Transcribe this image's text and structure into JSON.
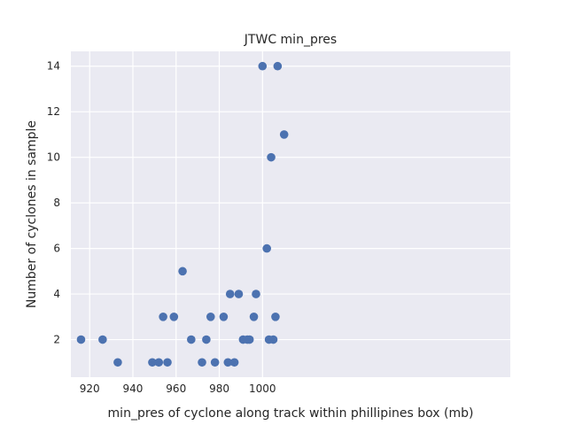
{
  "chart_data": {
    "type": "scatter",
    "title": "JTWC min_pres",
    "xlabel": "min_pres of cyclone along track within phillipines box (mb)",
    "ylabel": "Number of cyclones in sample",
    "xlim": [
      911.3,
      1114.7
    ],
    "ylim": [
      0.35,
      14.65
    ],
    "xticks": [
      920,
      940,
      960,
      980,
      1000
    ],
    "yticks": [
      2,
      4,
      6,
      8,
      10,
      12,
      14
    ],
    "grid": true,
    "point_color": "#4c72b0",
    "background_color": "#eaeaf2",
    "points": [
      {
        "x": 916,
        "y": 2
      },
      {
        "x": 926,
        "y": 2
      },
      {
        "x": 933,
        "y": 1
      },
      {
        "x": 949,
        "y": 1
      },
      {
        "x": 952,
        "y": 1
      },
      {
        "x": 954,
        "y": 3
      },
      {
        "x": 956,
        "y": 1
      },
      {
        "x": 959,
        "y": 3
      },
      {
        "x": 963,
        "y": 5
      },
      {
        "x": 967,
        "y": 2
      },
      {
        "x": 972,
        "y": 1
      },
      {
        "x": 974,
        "y": 2
      },
      {
        "x": 976,
        "y": 3
      },
      {
        "x": 978,
        "y": 1
      },
      {
        "x": 982,
        "y": 3
      },
      {
        "x": 984,
        "y": 1
      },
      {
        "x": 985,
        "y": 4
      },
      {
        "x": 987,
        "y": 1
      },
      {
        "x": 989,
        "y": 4
      },
      {
        "x": 991,
        "y": 2
      },
      {
        "x": 993,
        "y": 2
      },
      {
        "x": 994,
        "y": 2
      },
      {
        "x": 996,
        "y": 3
      },
      {
        "x": 997,
        "y": 4
      },
      {
        "x": 1000,
        "y": 14
      },
      {
        "x": 1002,
        "y": 6
      },
      {
        "x": 1003,
        "y": 2
      },
      {
        "x": 1004,
        "y": 10
      },
      {
        "x": 1005,
        "y": 2
      },
      {
        "x": 1006,
        "y": 3
      },
      {
        "x": 1007,
        "y": 14
      },
      {
        "x": 1010,
        "y": 11
      }
    ]
  }
}
